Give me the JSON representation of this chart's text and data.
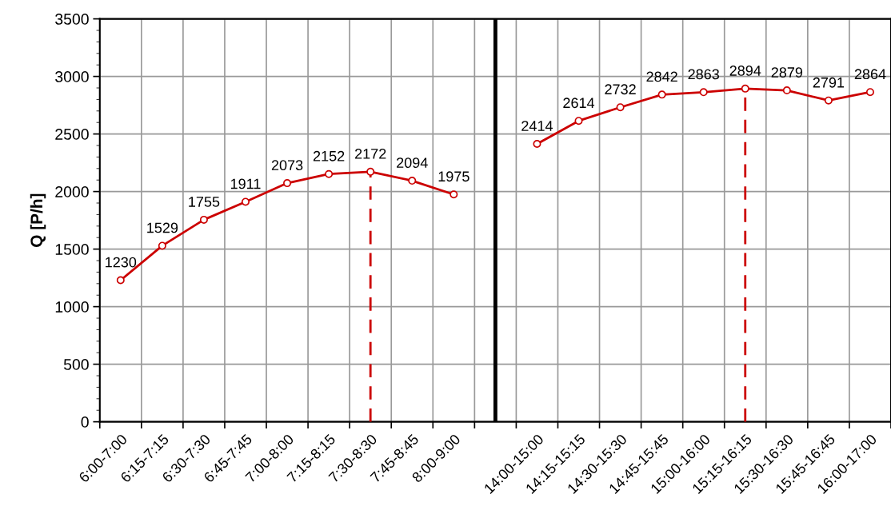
{
  "chart_data": {
    "type": "line",
    "ylabel": "Q [P/h]",
    "categories": [
      "6:00-7:00",
      "6:15-7:15",
      "6:30-7:30",
      "6:45-7:45",
      "7:00-8:00",
      "7:15-8:15",
      "7:30-8:30",
      "7:45-8:45",
      "8:00-9:00",
      null,
      "14:00-15:00",
      "14:15-15:15",
      "14:30-15:30",
      "14:45-15:45",
      "15:00-16:00",
      "15:15-16:15",
      "15:30-16:30",
      "15:45-16:45",
      "16:00-17:00"
    ],
    "series": [
      {
        "color": "#cc0000",
        "marker": "circle",
        "line_style": "solid",
        "values": [
          1230,
          1529,
          1755,
          1911,
          2073,
          2152,
          2172,
          2094,
          1975,
          null,
          2414,
          2614,
          2732,
          2842,
          2863,
          2894,
          2879,
          2791,
          2864
        ],
        "value_labels": [
          "1230",
          "1529",
          "1755",
          "1911",
          "2073",
          "2152",
          "2172",
          "2094",
          "1975",
          null,
          "2414",
          "2614",
          "2732",
          "2842",
          "2863",
          "2894",
          "2879",
          "2791",
          "2864"
        ]
      },
      {
        "type": "line",
        "color": "#cc0000",
        "marker": "none",
        "line_style": "dashed",
        "x": [
          "7:30-8:30",
          "7:30-8:30"
        ],
        "values": [
          0,
          2172
        ]
      },
      {
        "type": "line",
        "color": "#cc0000",
        "marker": "none",
        "line_style": "dashed",
        "x": [
          "15:15-16:15",
          "15:15-16:15"
        ],
        "values": [
          0,
          2894
        ]
      },
      {
        "type": "line",
        "color": "#000000",
        "marker": "none",
        "line_style": "solid",
        "x": [
          null,
          null
        ],
        "values": [
          0,
          3500
        ]
      }
    ],
    "ylim": [
      0,
      3500
    ],
    "yticks": [
      0,
      500,
      1000,
      1500,
      2000,
      2500,
      3000,
      3500
    ],
    "grid": true
  }
}
